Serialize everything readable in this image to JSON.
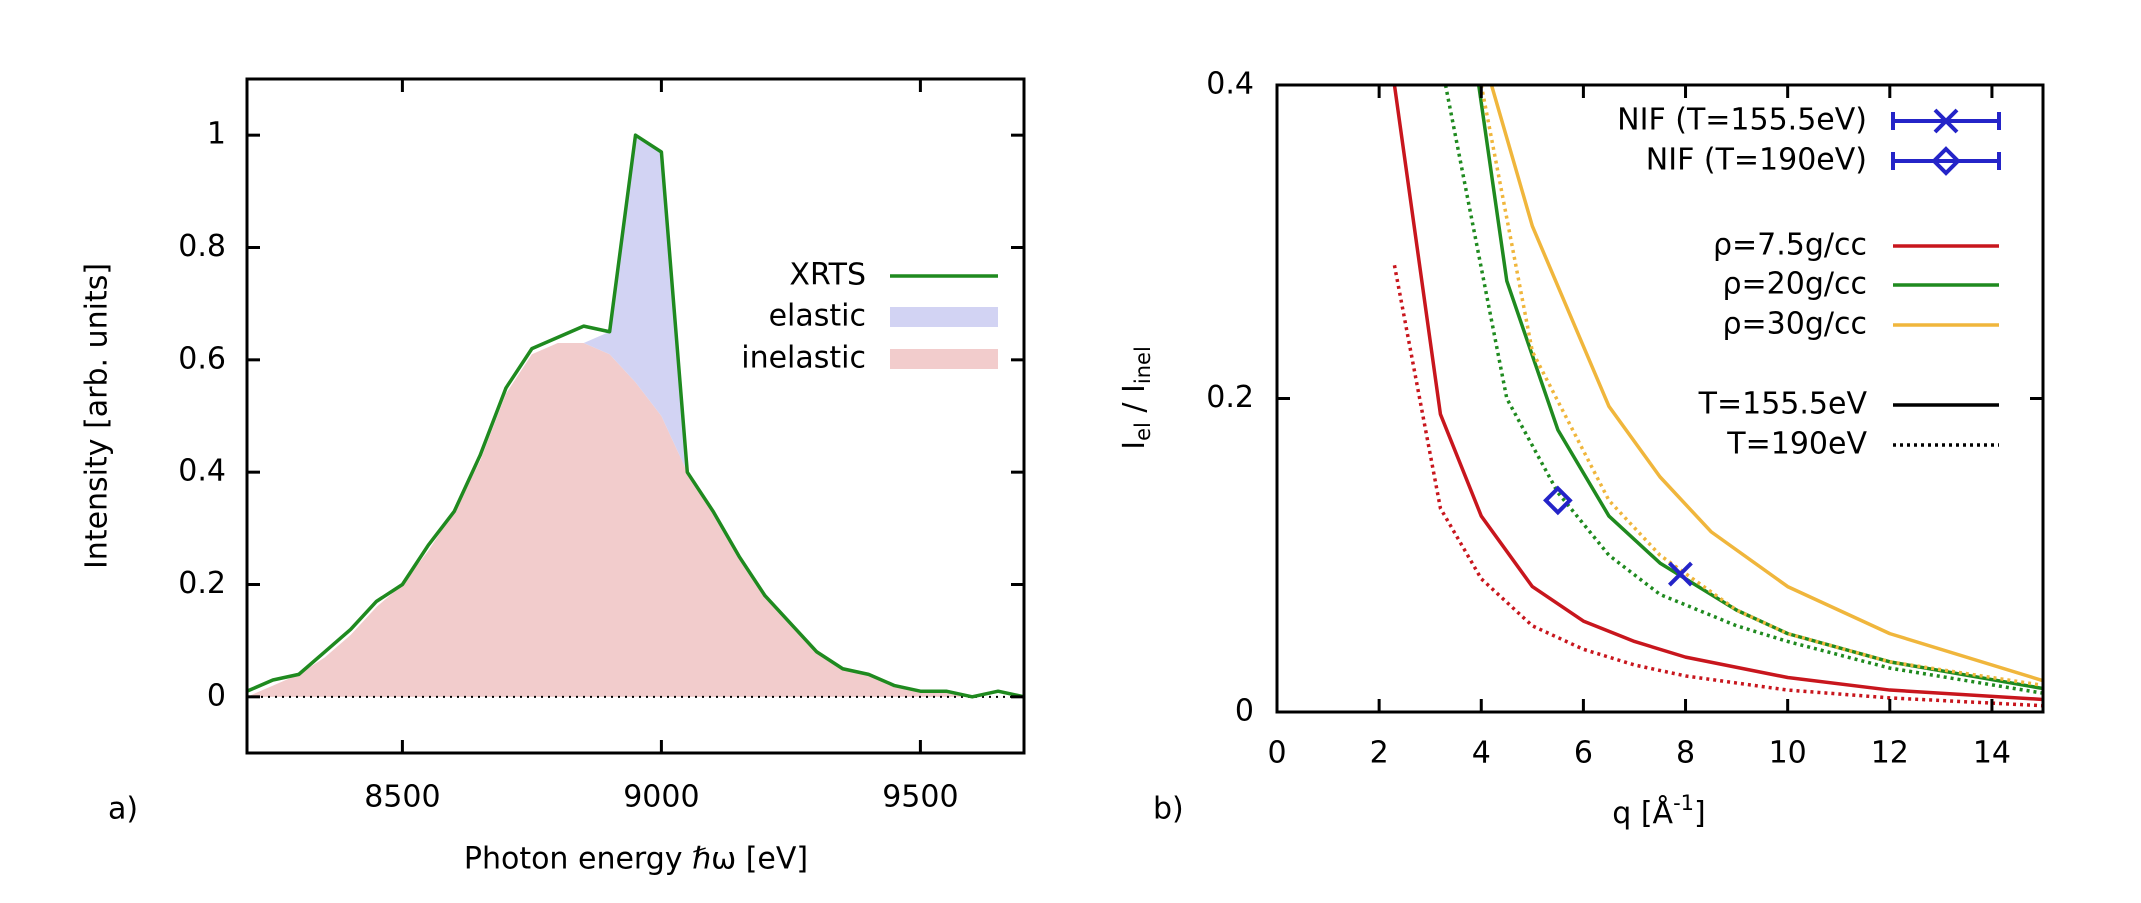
{
  "chart_data": [
    {
      "type": "area",
      "panel_label": "a)",
      "xlabel": "Photon energy ℏω [eV]",
      "ylabel": "Intensity [arb. units]",
      "x": [
        8200,
        8250,
        8300,
        8350,
        8400,
        8450,
        8500,
        8550,
        8600,
        8650,
        8700,
        8750,
        8800,
        8850,
        8900,
        8950,
        9000,
        9050,
        9100,
        9150,
        9200,
        9250,
        9300,
        9350,
        9400,
        9450,
        9500,
        9550,
        9600,
        9650,
        9700
      ],
      "series": [
        {
          "name": "XRTS",
          "kind": "line",
          "color": "#1f8a1f",
          "values": [
            0.01,
            0.03,
            0.04,
            0.08,
            0.12,
            0.17,
            0.2,
            0.27,
            0.33,
            0.43,
            0.55,
            0.62,
            0.64,
            0.66,
            0.65,
            1.0,
            0.97,
            0.4,
            0.33,
            0.25,
            0.18,
            0.13,
            0.08,
            0.05,
            0.04,
            0.02,
            0.01,
            0.01,
            0.0,
            0.01,
            0.0
          ]
        },
        {
          "name": "elastic",
          "kind": "area",
          "color": "#d2d3f3",
          "values": [
            0,
            0,
            0,
            0,
            0,
            0,
            0,
            0,
            0,
            0,
            0,
            0,
            0,
            0,
            0.04,
            0.44,
            0.47,
            0,
            0,
            0,
            0,
            0,
            0,
            0,
            0,
            0,
            0,
            0,
            0,
            0,
            0
          ]
        },
        {
          "name": "inelastic",
          "kind": "area",
          "color": "#f2cccc",
          "values": [
            0,
            0.02,
            0.04,
            0.07,
            0.11,
            0.16,
            0.2,
            0.26,
            0.33,
            0.42,
            0.54,
            0.61,
            0.63,
            0.63,
            0.61,
            0.56,
            0.5,
            0.4,
            0.33,
            0.25,
            0.18,
            0.13,
            0.08,
            0.05,
            0.04,
            0.02,
            0.01,
            0.01,
            0,
            0,
            0
          ]
        }
      ],
      "xlim": [
        8200,
        9700
      ],
      "xticks": [
        8500,
        9000,
        9500
      ],
      "ylim": [
        -0.1,
        1.1
      ],
      "yticks": [
        0,
        0.2,
        0.4,
        0.6,
        0.8,
        1
      ],
      "zero_line": true,
      "legend_position": "right"
    },
    {
      "type": "line",
      "panel_label": "b)",
      "xlabel": [
        "q [Å",
        "-1",
        "]"
      ],
      "ylabel": [
        "I",
        "el",
        " / I",
        "inel"
      ],
      "series": [
        {
          "kind": "line",
          "color": "#c8161d",
          "dash": "solid",
          "x": [
            2.3,
            3.2,
            4,
            5,
            6,
            7,
            8,
            10,
            12,
            15
          ],
          "values": [
            0.4,
            0.19,
            0.125,
            0.08,
            0.058,
            0.045,
            0.035,
            0.022,
            0.014,
            0.008
          ]
        },
        {
          "kind": "line",
          "color": "#c8161d",
          "dash": "dotted",
          "x": [
            2.3,
            3.2,
            4,
            5,
            6,
            7,
            8,
            10,
            12,
            15
          ],
          "values": [
            0.285,
            0.13,
            0.085,
            0.055,
            0.04,
            0.03,
            0.023,
            0.014,
            0.009,
            0.004
          ]
        },
        {
          "kind": "line",
          "color": "#1f8a1f",
          "dash": "solid",
          "x": [
            3.95,
            4.5,
            5.5,
            6.5,
            7.5,
            9,
            10,
            12,
            15
          ],
          "values": [
            0.4,
            0.275,
            0.18,
            0.125,
            0.095,
            0.065,
            0.05,
            0.032,
            0.015
          ]
        },
        {
          "kind": "line",
          "color": "#1f8a1f",
          "dash": "dotted",
          "x": [
            3.3,
            4.5,
            5.5,
            6.5,
            7.5,
            9,
            10,
            12,
            15
          ],
          "values": [
            0.4,
            0.2,
            0.14,
            0.1,
            0.075,
            0.055,
            0.045,
            0.028,
            0.012
          ]
        },
        {
          "kind": "line",
          "color": "#f0b63c",
          "dash": "solid",
          "x": [
            4.2,
            5,
            6.5,
            7.5,
            8.5,
            10,
            12,
            15
          ],
          "values": [
            0.4,
            0.31,
            0.195,
            0.15,
            0.115,
            0.08,
            0.05,
            0.02
          ]
        },
        {
          "kind": "line",
          "color": "#f0b63c",
          "dash": "dotted",
          "x": [
            4,
            5,
            6.5,
            7.5,
            9,
            10,
            12,
            15
          ],
          "values": [
            0.4,
            0.23,
            0.135,
            0.1,
            0.065,
            0.05,
            0.032,
            0.017
          ]
        },
        {
          "kind": "points",
          "color": "#2424c8",
          "marker": "x",
          "x": [
            7.9
          ],
          "values": [
            0.088
          ]
        },
        {
          "kind": "points",
          "color": "#2424c8",
          "marker": "diamond",
          "x": [
            5.5
          ],
          "values": [
            0.135
          ]
        }
      ],
      "legend": [
        {
          "label": "NIF (T=155.5eV)",
          "color": "#2424c8",
          "marker": "x"
        },
        {
          "label": "NIF (T=190eV)",
          "color": "#2424c8",
          "marker": "diamond"
        },
        {
          "label": "ρ=7.5g/cc",
          "color": "#c8161d",
          "dash": "solid"
        },
        {
          "label": "ρ=20g/cc",
          "color": "#1f8a1f",
          "dash": "solid"
        },
        {
          "label": "ρ=30g/cc",
          "color": "#f0b63c",
          "dash": "solid"
        },
        {
          "label": "T=155.5eV",
          "color": "#000000",
          "dash": "solid"
        },
        {
          "label": "T=190eV",
          "color": "#000000",
          "dash": "dotted"
        }
      ],
      "xlim": [
        0,
        15
      ],
      "xticks": [
        0,
        2,
        4,
        6,
        8,
        10,
        12,
        14
      ],
      "ylim": [
        0,
        0.4
      ],
      "yticks": [
        0,
        0.2,
        0.4
      ],
      "legend_position": "top-right"
    }
  ]
}
